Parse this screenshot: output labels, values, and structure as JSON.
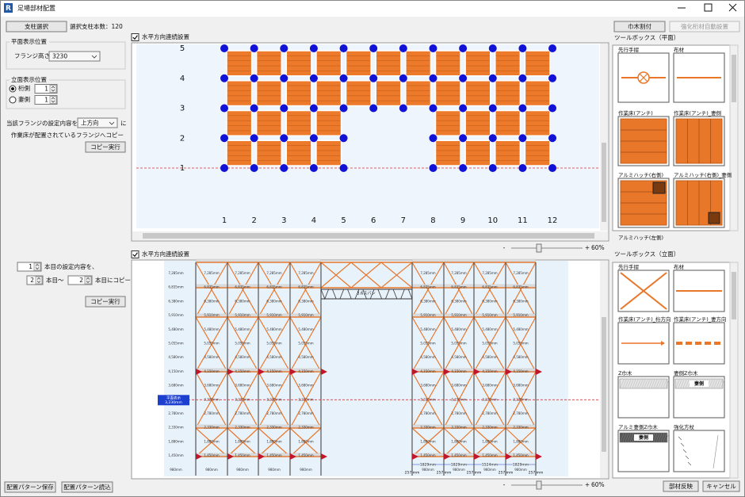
{
  "window": {
    "app_icon": "R",
    "title": "足場部材配置"
  },
  "left_panel": {
    "select_post_button": "支柱選択",
    "selected_post_count": "選択支柱本数：120",
    "plan_position": {
      "legend": "平面表示位置",
      "flange_height_label": "フランジ高さ：",
      "flange_height": "3230"
    },
    "elevation_position": {
      "legend": "立面表示位置",
      "options": [
        {
          "label": "桁側",
          "value": "1"
        },
        {
          "label": "妻側",
          "value": "1"
        }
      ]
    },
    "copy_setting": {
      "prefix": "当該フランジの設定内容を、",
      "direction": "上方向",
      "suffix": "に",
      "target": "作業床が配置されているフランジへコピー",
      "button": "コピー実行"
    },
    "row_copy": {
      "source": "1",
      "source_suffix": "本目の設定内容を、",
      "from": "2",
      "from_suffix": "本目～",
      "to": "2",
      "to_suffix": "本目にコピー",
      "button": "コピー実行"
    },
    "save_button": "配置パターン保存",
    "load_button": "配置パターン読込"
  },
  "plan_view": {
    "checkbox": "水平方向連続設置",
    "rows": [
      "5",
      "4",
      "3",
      "2",
      "1"
    ],
    "columns": [
      "1",
      "2",
      "3",
      "4",
      "5",
      "6",
      "7",
      "8",
      "9",
      "10",
      "11",
      "12"
    ],
    "zoom_out": "-",
    "zoom_in": "+",
    "zoom": "60%"
  },
  "elevation_view": {
    "checkbox": "水平方向連続設置",
    "levels": [
      "7,285mm",
      "6,835mm",
      "6,380mm",
      "5,910mm",
      "5,480mm",
      "5,055mm",
      "4,580mm",
      "4,150mm",
      "3,680mm",
      "3,230mm",
      "2,780mm",
      "2,330mm",
      "1,880mm",
      "1,450mm",
      "980mm"
    ],
    "plan_marker": [
      "平面表示",
      "3,230mm"
    ],
    "truss_label": "3.6スパン",
    "spans": [
      "1829mm",
      "1829mm",
      "1524mm",
      "1829mm"
    ],
    "offset_label": "257 mm",
    "zoom_out": "-",
    "zoom_in": "+",
    "zoom": "60%"
  },
  "right_panel": {
    "width_board_button": "巾木割付",
    "reinforce_button": "強化桁材自動設置",
    "plan_toolbox": {
      "title": "ツールボックス（平面）",
      "items": [
        "先行手摺",
        "布材",
        "作業床(アンチ)",
        "作業床(アンチ)_妻側",
        "アルミハッチ(右側)",
        "アルミハッチ(右側)_妻側",
        "アルミハッチ(左側)"
      ]
    },
    "elevation_toolbox": {
      "title": "ツールボックス（立面）",
      "items": [
        "先行手摺",
        "布材",
        "作業床(アンチ)_桁方向",
        "作業床(アンチ)_妻方向",
        "Z巾木",
        "妻側Z巾木",
        "アルミ妻側Z巾木",
        "強化方杖"
      ],
      "tile_label": "妻側"
    },
    "apply_button": "部材反映",
    "cancel_button": "キャンセル"
  }
}
